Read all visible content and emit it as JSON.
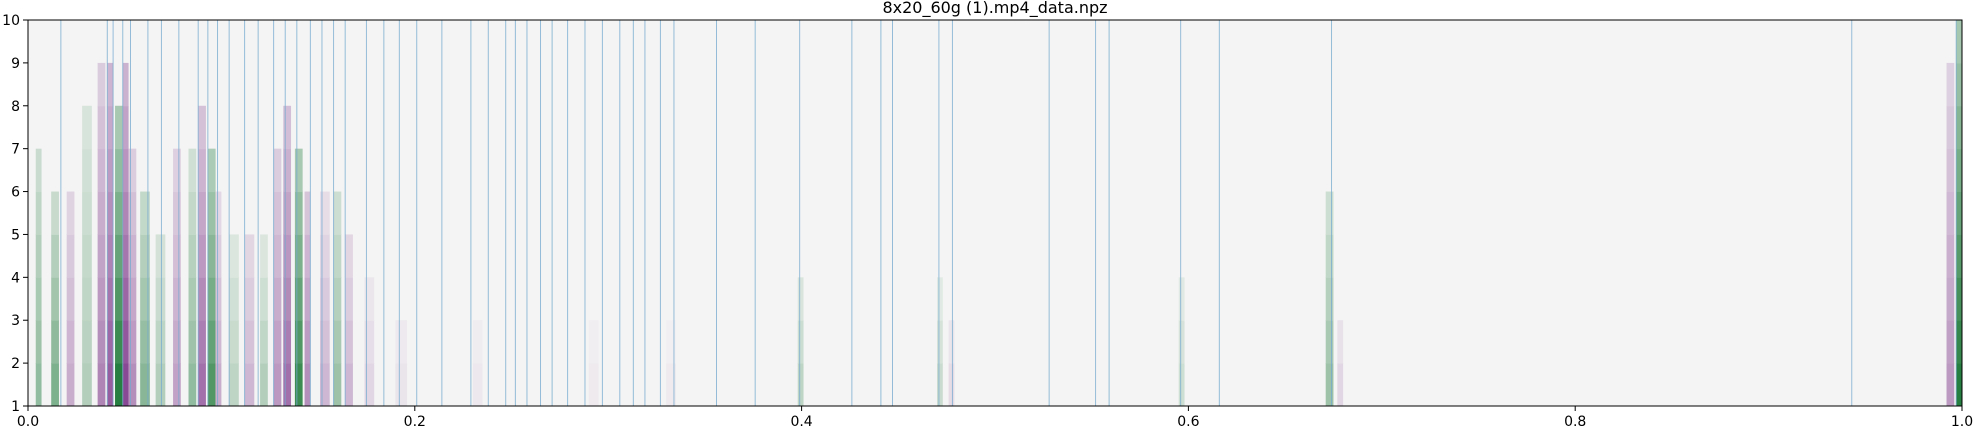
{
  "chart_data": {
    "type": "heatmap",
    "title": "8x20_60g (1).mp4_data.npz",
    "xlabel": "",
    "ylabel": "",
    "xlim": [
      0.0,
      1.0
    ],
    "ylim": [
      1,
      10
    ],
    "grid": false,
    "legend": "none",
    "x_ticks": [
      {
        "value": 0.0,
        "label": "0.0"
      },
      {
        "value": 0.2,
        "label": "0.2"
      },
      {
        "value": 0.4,
        "label": "0.4"
      },
      {
        "value": 0.6,
        "label": "0.6"
      },
      {
        "value": 0.8,
        "label": "0.8"
      },
      {
        "value": 1.0,
        "label": "1.0"
      }
    ],
    "y_ticks": [
      {
        "value": 1,
        "label": "1"
      },
      {
        "value": 2,
        "label": "2"
      },
      {
        "value": 3,
        "label": "3"
      },
      {
        "value": 4,
        "label": "4"
      },
      {
        "value": 5,
        "label": "5"
      },
      {
        "value": 6,
        "label": "6"
      },
      {
        "value": 7,
        "label": "7"
      },
      {
        "value": 8,
        "label": "8"
      },
      {
        "value": 9,
        "label": "9"
      },
      {
        "value": 10,
        "label": "10"
      }
    ],
    "colors": {
      "background": "#f4f4f4",
      "positive": "#1b7837",
      "negative": "#762a83",
      "markers": "#74a9cf"
    },
    "colormap": "PRGn",
    "markers": [
      0.017,
      0.041,
      0.044,
      0.049,
      0.053,
      0.062,
      0.069,
      0.078,
      0.088,
      0.093,
      0.098,
      0.104,
      0.112,
      0.119,
      0.127,
      0.133,
      0.139,
      0.146,
      0.152,
      0.158,
      0.164,
      0.175,
      0.184,
      0.192,
      0.201,
      0.214,
      0.229,
      0.238,
      0.247,
      0.252,
      0.258,
      0.265,
      0.271,
      0.279,
      0.288,
      0.297,
      0.306,
      0.313,
      0.319,
      0.327,
      0.334,
      0.356,
      0.376,
      0.399,
      0.426,
      0.441,
      0.447,
      0.471,
      0.478,
      0.528,
      0.552,
      0.559,
      0.596,
      0.616,
      0.674,
      0.943,
      0.997
    ],
    "bands": [
      {
        "x": 0.004,
        "w": 0.003,
        "v": 0.45,
        "top": 6.8
      },
      {
        "x": 0.012,
        "w": 0.004,
        "v": 0.55,
        "top": 5.2
      },
      {
        "x": 0.02,
        "w": 0.004,
        "v": -0.35,
        "top": 6.0
      },
      {
        "x": 0.028,
        "w": 0.005,
        "v": 0.3,
        "top": 8.0
      },
      {
        "x": 0.036,
        "w": 0.004,
        "v": -0.55,
        "top": 8.2
      },
      {
        "x": 0.041,
        "w": 0.003,
        "v": -0.75,
        "top": 8.8
      },
      {
        "x": 0.045,
        "w": 0.004,
        "v": 0.95,
        "top": 7.2
      },
      {
        "x": 0.049,
        "w": 0.003,
        "v": -0.85,
        "top": 8.4
      },
      {
        "x": 0.052,
        "w": 0.004,
        "v": -0.5,
        "top": 6.4
      },
      {
        "x": 0.058,
        "w": 0.005,
        "v": 0.5,
        "top": 5.8
      },
      {
        "x": 0.066,
        "w": 0.005,
        "v": 0.3,
        "top": 5.0
      },
      {
        "x": 0.075,
        "w": 0.004,
        "v": -0.4,
        "top": 6.8
      },
      {
        "x": 0.083,
        "w": 0.004,
        "v": 0.45,
        "top": 6.2
      },
      {
        "x": 0.088,
        "w": 0.004,
        "v": -0.65,
        "top": 7.4
      },
      {
        "x": 0.093,
        "w": 0.004,
        "v": 0.75,
        "top": 6.8
      },
      {
        "x": 0.097,
        "w": 0.003,
        "v": -0.35,
        "top": 5.4
      },
      {
        "x": 0.104,
        "w": 0.005,
        "v": 0.25,
        "top": 4.6
      },
      {
        "x": 0.112,
        "w": 0.005,
        "v": -0.3,
        "top": 4.8
      },
      {
        "x": 0.12,
        "w": 0.004,
        "v": 0.3,
        "top": 4.2
      },
      {
        "x": 0.127,
        "w": 0.004,
        "v": -0.45,
        "top": 6.8
      },
      {
        "x": 0.132,
        "w": 0.004,
        "v": -0.65,
        "top": 7.6
      },
      {
        "x": 0.138,
        "w": 0.004,
        "v": 0.85,
        "top": 6.6
      },
      {
        "x": 0.143,
        "w": 0.003,
        "v": -0.5,
        "top": 6.0
      },
      {
        "x": 0.151,
        "w": 0.005,
        "v": -0.3,
        "top": 5.2
      },
      {
        "x": 0.158,
        "w": 0.004,
        "v": 0.4,
        "top": 5.8
      },
      {
        "x": 0.164,
        "w": 0.004,
        "v": -0.3,
        "top": 4.8
      },
      {
        "x": 0.174,
        "w": 0.005,
        "v": -0.15,
        "top": 3.4
      },
      {
        "x": 0.19,
        "w": 0.006,
        "v": -0.08,
        "top": 3.0
      },
      {
        "x": 0.23,
        "w": 0.005,
        "v": -0.06,
        "top": 2.6
      },
      {
        "x": 0.29,
        "w": 0.005,
        "v": -0.05,
        "top": 2.6
      },
      {
        "x": 0.33,
        "w": 0.005,
        "v": -0.05,
        "top": 2.4
      },
      {
        "x": 0.398,
        "w": 0.003,
        "v": 0.25,
        "top": 3.6
      },
      {
        "x": 0.47,
        "w": 0.003,
        "v": 0.2,
        "top": 3.4
      },
      {
        "x": 0.476,
        "w": 0.003,
        "v": -0.12,
        "top": 2.8
      },
      {
        "x": 0.595,
        "w": 0.003,
        "v": 0.18,
        "top": 3.6
      },
      {
        "x": 0.671,
        "w": 0.004,
        "v": 0.4,
        "top": 5.8
      },
      {
        "x": 0.677,
        "w": 0.003,
        "v": -0.15,
        "top": 2.8
      },
      {
        "x": 0.992,
        "w": 0.004,
        "v": -0.45,
        "top": 8.6
      },
      {
        "x": 0.997,
        "w": 0.003,
        "v": 0.95,
        "top": 9.4
      }
    ]
  }
}
